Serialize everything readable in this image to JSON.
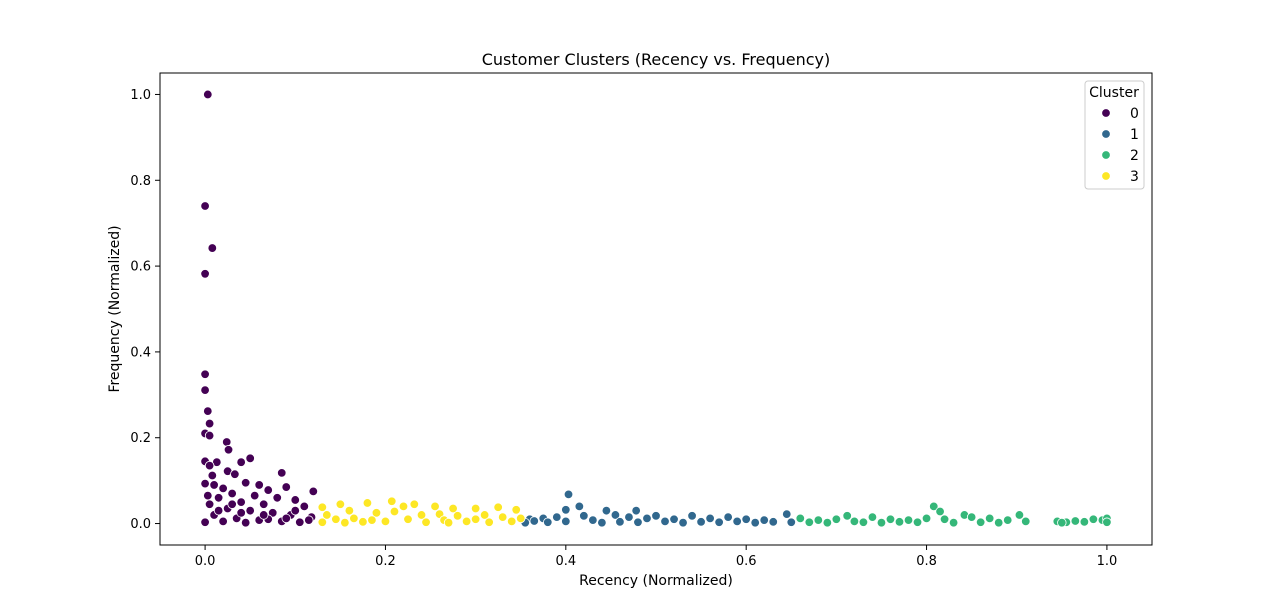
{
  "chart_data": {
    "type": "scatter",
    "title": "Customer Clusters (Recency vs. Frequency)",
    "xlabel": "Recency (Normalized)",
    "ylabel": "Frequency (Normalized)",
    "xlim": [
      -0.05,
      1.05
    ],
    "ylim": [
      -0.05,
      1.05
    ],
    "xticks": [
      0.0,
      0.2,
      0.4,
      0.6,
      0.8,
      1.0
    ],
    "yticks": [
      0.0,
      0.2,
      0.4,
      0.6,
      0.8,
      1.0
    ],
    "xtick_labels": [
      "0.0",
      "0.2",
      "0.4",
      "0.6",
      "0.8",
      "1.0"
    ],
    "ytick_labels": [
      "0.0",
      "0.2",
      "0.4",
      "0.6",
      "0.8",
      "1.0"
    ],
    "grid": false,
    "legend": {
      "title": "Cluster",
      "placement": "top-right"
    },
    "series": [
      {
        "name": "0",
        "color": "#440154",
        "points": [
          [
            0.003,
            1.0
          ],
          [
            0.0,
            0.74
          ],
          [
            0.008,
            0.642
          ],
          [
            0.0,
            0.582
          ],
          [
            0.0,
            0.348
          ],
          [
            0.0,
            0.311
          ],
          [
            0.003,
            0.262
          ],
          [
            0.005,
            0.233
          ],
          [
            0.0,
            0.21
          ],
          [
            0.005,
            0.205
          ],
          [
            0.024,
            0.19
          ],
          [
            0.026,
            0.172
          ],
          [
            0.05,
            0.152
          ],
          [
            0.04,
            0.143
          ],
          [
            0.013,
            0.143
          ],
          [
            0.0,
            0.145
          ],
          [
            0.005,
            0.135
          ],
          [
            0.025,
            0.122
          ],
          [
            0.085,
            0.118
          ],
          [
            0.008,
            0.112
          ],
          [
            0.033,
            0.115
          ],
          [
            0.0,
            0.093
          ],
          [
            0.01,
            0.09
          ],
          [
            0.045,
            0.095
          ],
          [
            0.06,
            0.09
          ],
          [
            0.09,
            0.085
          ],
          [
            0.02,
            0.082
          ],
          [
            0.07,
            0.078
          ],
          [
            0.12,
            0.075
          ],
          [
            0.03,
            0.07
          ],
          [
            0.055,
            0.065
          ],
          [
            0.08,
            0.06
          ],
          [
            0.1,
            0.055
          ],
          [
            0.015,
            0.06
          ],
          [
            0.04,
            0.05
          ],
          [
            0.065,
            0.045
          ],
          [
            0.11,
            0.04
          ],
          [
            0.005,
            0.045
          ],
          [
            0.025,
            0.035
          ],
          [
            0.05,
            0.03
          ],
          [
            0.075,
            0.025
          ],
          [
            0.095,
            0.02
          ],
          [
            0.118,
            0.015
          ],
          [
            0.01,
            0.02
          ],
          [
            0.035,
            0.012
          ],
          [
            0.06,
            0.008
          ],
          [
            0.085,
            0.005
          ],
          [
            0.105,
            0.003
          ],
          [
            0.0,
            0.003
          ],
          [
            0.02,
            0.005
          ],
          [
            0.045,
            0.002
          ],
          [
            0.07,
            0.01
          ],
          [
            0.09,
            0.012
          ],
          [
            0.115,
            0.008
          ],
          [
            0.015,
            0.03
          ],
          [
            0.04,
            0.025
          ],
          [
            0.065,
            0.02
          ],
          [
            0.1,
            0.03
          ],
          [
            0.003,
            0.065
          ],
          [
            0.03,
            0.045
          ]
        ]
      },
      {
        "name": "1",
        "color": "#31688e",
        "points": [
          [
            0.403,
            0.068
          ],
          [
            0.415,
            0.04
          ],
          [
            0.4,
            0.032
          ],
          [
            0.445,
            0.03
          ],
          [
            0.478,
            0.03
          ],
          [
            0.36,
            0.01
          ],
          [
            0.375,
            0.012
          ],
          [
            0.39,
            0.015
          ],
          [
            0.42,
            0.018
          ],
          [
            0.43,
            0.008
          ],
          [
            0.455,
            0.02
          ],
          [
            0.47,
            0.015
          ],
          [
            0.49,
            0.012
          ],
          [
            0.5,
            0.018
          ],
          [
            0.52,
            0.01
          ],
          [
            0.54,
            0.018
          ],
          [
            0.56,
            0.012
          ],
          [
            0.58,
            0.015
          ],
          [
            0.6,
            0.01
          ],
          [
            0.62,
            0.008
          ],
          [
            0.645,
            0.022
          ],
          [
            0.38,
            0.003
          ],
          [
            0.4,
            0.005
          ],
          [
            0.44,
            0.002
          ],
          [
            0.46,
            0.004
          ],
          [
            0.48,
            0.003
          ],
          [
            0.51,
            0.005
          ],
          [
            0.53,
            0.002
          ],
          [
            0.55,
            0.004
          ],
          [
            0.57,
            0.003
          ],
          [
            0.59,
            0.005
          ],
          [
            0.61,
            0.002
          ],
          [
            0.63,
            0.004
          ],
          [
            0.355,
            0.002
          ],
          [
            0.365,
            0.006
          ],
          [
            0.65,
            0.003
          ]
        ]
      },
      {
        "name": "2",
        "color": "#35b779",
        "points": [
          [
            0.808,
            0.04
          ],
          [
            0.815,
            0.028
          ],
          [
            0.903,
            0.02
          ],
          [
            0.842,
            0.02
          ],
          [
            0.712,
            0.018
          ],
          [
            0.74,
            0.015
          ],
          [
            0.66,
            0.012
          ],
          [
            0.68,
            0.008
          ],
          [
            0.7,
            0.01
          ],
          [
            0.72,
            0.005
          ],
          [
            0.76,
            0.01
          ],
          [
            0.78,
            0.008
          ],
          [
            0.8,
            0.012
          ],
          [
            0.82,
            0.01
          ],
          [
            0.85,
            0.015
          ],
          [
            0.87,
            0.012
          ],
          [
            0.89,
            0.008
          ],
          [
            0.91,
            0.005
          ],
          [
            0.67,
            0.003
          ],
          [
            0.69,
            0.002
          ],
          [
            0.73,
            0.003
          ],
          [
            0.75,
            0.002
          ],
          [
            0.77,
            0.004
          ],
          [
            0.79,
            0.003
          ],
          [
            0.83,
            0.002
          ],
          [
            0.86,
            0.003
          ],
          [
            0.88,
            0.002
          ],
          [
            0.945,
            0.005
          ],
          [
            0.955,
            0.003
          ],
          [
            0.965,
            0.006
          ],
          [
            0.975,
            0.004
          ],
          [
            0.985,
            0.01
          ],
          [
            0.995,
            0.008
          ],
          [
            1.0,
            0.012
          ],
          [
            1.0,
            0.003
          ],
          [
            0.95,
            0.002
          ]
        ]
      },
      {
        "name": "3",
        "color": "#fde725",
        "points": [
          [
            0.207,
            0.052
          ],
          [
            0.15,
            0.045
          ],
          [
            0.18,
            0.048
          ],
          [
            0.232,
            0.045
          ],
          [
            0.22,
            0.04
          ],
          [
            0.255,
            0.04
          ],
          [
            0.275,
            0.035
          ],
          [
            0.3,
            0.035
          ],
          [
            0.325,
            0.038
          ],
          [
            0.345,
            0.032
          ],
          [
            0.13,
            0.038
          ],
          [
            0.16,
            0.03
          ],
          [
            0.19,
            0.025
          ],
          [
            0.21,
            0.028
          ],
          [
            0.24,
            0.02
          ],
          [
            0.26,
            0.022
          ],
          [
            0.28,
            0.018
          ],
          [
            0.31,
            0.02
          ],
          [
            0.33,
            0.015
          ],
          [
            0.35,
            0.012
          ],
          [
            0.135,
            0.02
          ],
          [
            0.145,
            0.01
          ],
          [
            0.165,
            0.012
          ],
          [
            0.185,
            0.008
          ],
          [
            0.2,
            0.005
          ],
          [
            0.225,
            0.01
          ],
          [
            0.245,
            0.003
          ],
          [
            0.265,
            0.008
          ],
          [
            0.29,
            0.005
          ],
          [
            0.315,
            0.003
          ],
          [
            0.34,
            0.005
          ],
          [
            0.13,
            0.003
          ],
          [
            0.155,
            0.002
          ],
          [
            0.175,
            0.004
          ],
          [
            0.27,
            0.002
          ],
          [
            0.3,
            0.01
          ]
        ]
      }
    ]
  }
}
